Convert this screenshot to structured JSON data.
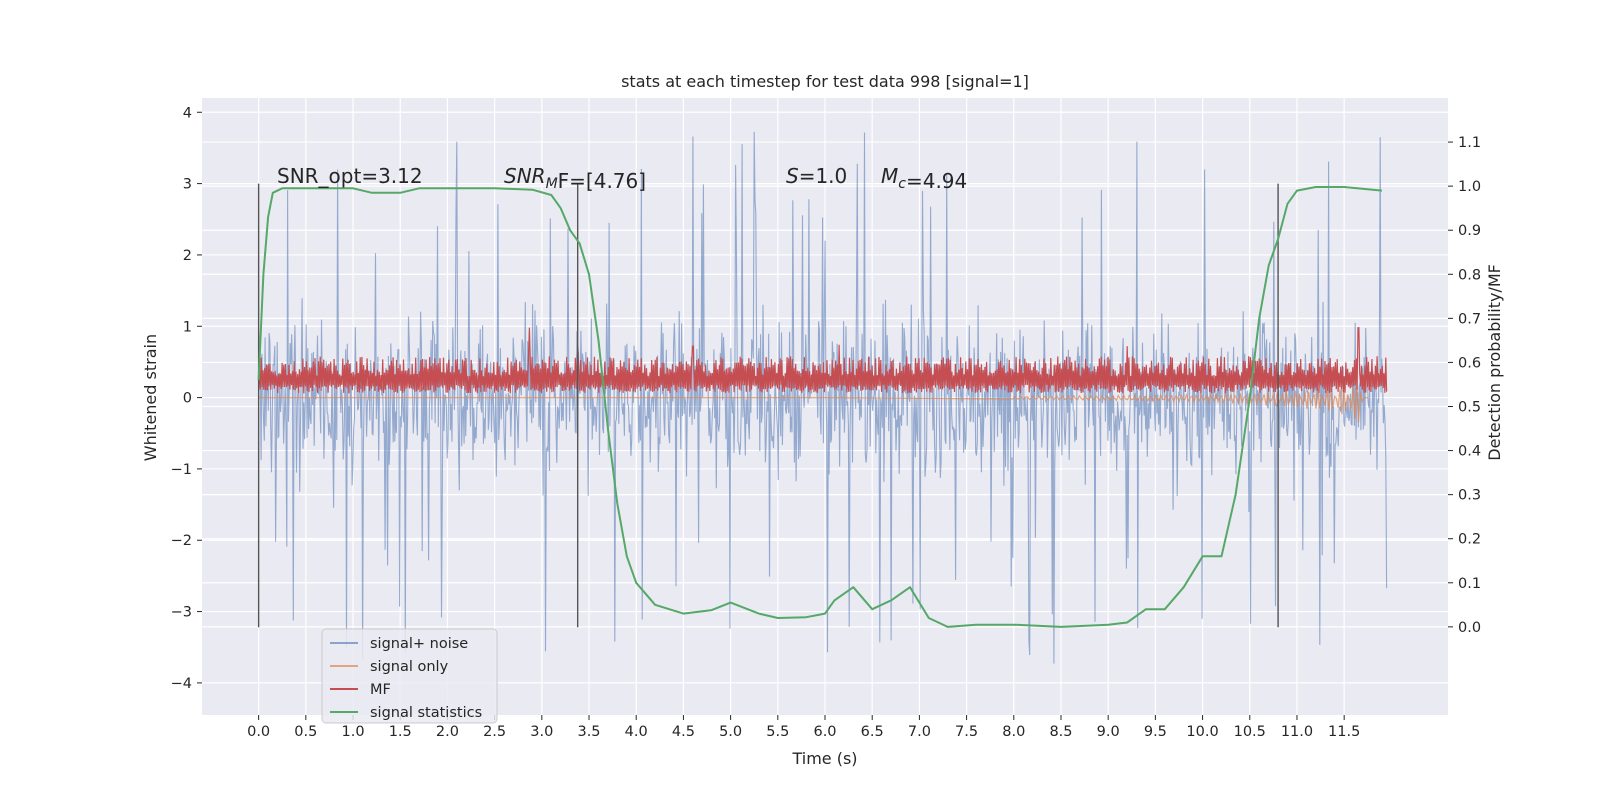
{
  "chart_data": {
    "type": "line",
    "title": "stats at each timestep for test data 998 [signal=1]",
    "xlabel": "Time (s)",
    "ylabel_left": "Whitened strain",
    "ylabel_right": "Detection probability/MF",
    "xlim": [
      -0.6,
      12.6
    ],
    "ylim_left": [
      -4.45,
      4.2
    ],
    "ylim_right": [
      -0.2,
      1.2
    ],
    "xticks": [
      "0.0",
      "0.5",
      "1.0",
      "1.5",
      "2.0",
      "2.5",
      "3.0",
      "3.5",
      "4.0",
      "4.5",
      "5.0",
      "5.5",
      "6.0",
      "6.5",
      "7.0",
      "7.5",
      "8.0",
      "8.5",
      "9.0",
      "9.5",
      "10.0",
      "10.5",
      "11.0",
      "11.5"
    ],
    "yticks_left": [
      "4",
      "3",
      "2",
      "1",
      "0",
      "−1",
      "−2",
      "−3",
      "−4"
    ],
    "yticks_right": [
      "1.1",
      "1.0",
      "0.9",
      "0.8",
      "0.7",
      "0.6",
      "0.5",
      "0.4",
      "0.3",
      "0.2",
      "0.1",
      "0.0"
    ],
    "grid": true,
    "legend_position": "lower-left",
    "colors": {
      "background": "#eaeaf2",
      "grid": "#ffffff",
      "noise": "#4c72b0",
      "signal_only": "#dd8452",
      "mf": "#c44e52",
      "stats": "#55a868",
      "vlines": "#555555"
    },
    "annotations": [
      {
        "text_parts": [
          {
            "t": "SNR_opt=3.12",
            "i": false
          }
        ]
      },
      {
        "text_parts": [
          {
            "t": "SNR",
            "i": true
          },
          {
            "t": "M",
            "i": true,
            "sub": true
          },
          {
            "t": "F=[4.76]",
            "i": false
          }
        ]
      },
      {
        "text_parts": [
          {
            "t": "S",
            "i": true
          },
          {
            "t": "=1.0",
            "i": false
          }
        ]
      },
      {
        "text_parts": [
          {
            "t": "M",
            "i": true
          },
          {
            "t": "c",
            "i": true,
            "sub": true
          },
          {
            "t": "=4.94",
            "i": false
          }
        ]
      }
    ],
    "vlines_x": [
      0.0,
      3.38,
      10.8
    ],
    "series": [
      {
        "name": "signal+ noise",
        "kind": "noise",
        "x_range": [
          0.0,
          11.95
        ],
        "typical_range": [
          -2.0,
          2.0
        ],
        "extremes": [
          -4.1,
          3.85
        ]
      },
      {
        "name": "signal only",
        "kind": "signal_only",
        "x_range": [
          0.0,
          11.75
        ],
        "points": [
          [
            0.0,
            0.0
          ],
          [
            6.0,
            0.0
          ],
          [
            8.0,
            -0.02
          ],
          [
            10.0,
            -0.05
          ],
          [
            10.8,
            -0.1
          ],
          [
            11.3,
            -0.15
          ],
          [
            11.6,
            -0.22
          ],
          [
            11.65,
            -0.35
          ],
          [
            11.7,
            -0.1
          ]
        ]
      },
      {
        "name": "MF",
        "kind": "mf",
        "x_range": [
          0.0,
          11.95
        ],
        "base": 0.06,
        "typical": 0.3,
        "peaks": [
          [
            2.87,
            0.98
          ],
          [
            11.65,
            0.98
          ],
          [
            3.38,
            0.72
          ],
          [
            4.6,
            0.72
          ],
          [
            6.15,
            0.74
          ],
          [
            9.2,
            0.72
          ]
        ]
      },
      {
        "name": "signal statistics",
        "kind": "stats",
        "x": [
          0.0,
          0.05,
          0.1,
          0.15,
          0.25,
          0.5,
          1.0,
          1.2,
          1.5,
          1.7,
          2.0,
          2.5,
          2.9,
          3.1,
          3.2,
          3.3,
          3.4,
          3.5,
          3.6,
          3.7,
          3.8,
          3.9,
          4.0,
          4.2,
          4.5,
          4.8,
          5.0,
          5.3,
          5.5,
          5.8,
          6.0,
          6.1,
          6.3,
          6.5,
          6.7,
          6.9,
          7.1,
          7.3,
          7.6,
          8.0,
          8.5,
          9.0,
          9.2,
          9.4,
          9.6,
          9.8,
          10.0,
          10.2,
          10.35,
          10.5,
          10.6,
          10.7,
          10.8,
          10.9,
          11.0,
          11.2,
          11.5,
          11.9
        ],
        "y": [
          0.56,
          0.8,
          0.93,
          0.985,
          0.995,
          0.995,
          0.995,
          0.985,
          0.985,
          0.995,
          0.995,
          0.995,
          0.992,
          0.98,
          0.95,
          0.9,
          0.87,
          0.8,
          0.65,
          0.45,
          0.28,
          0.16,
          0.1,
          0.05,
          0.03,
          0.038,
          0.055,
          0.03,
          0.02,
          0.022,
          0.03,
          0.06,
          0.09,
          0.04,
          0.06,
          0.09,
          0.02,
          0.0,
          0.005,
          0.005,
          0.0,
          0.005,
          0.01,
          0.04,
          0.04,
          0.09,
          0.16,
          0.16,
          0.3,
          0.52,
          0.7,
          0.82,
          0.88,
          0.96,
          0.99,
          0.998,
          0.998,
          0.99
        ]
      }
    ],
    "legend": [
      "signal+ noise",
      "signal only",
      "MF",
      "signal statistics"
    ]
  }
}
